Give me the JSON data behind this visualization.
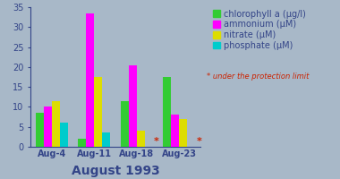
{
  "categories": [
    "Aug-4",
    "Aug-11",
    "Aug-18",
    "Aug-23"
  ],
  "series": {
    "chlorophyll a (μg/l)": [
      8.5,
      2.0,
      11.5,
      17.5
    ],
    "ammonium (μM)": [
      10.0,
      33.5,
      20.5,
      8.0
    ],
    "nitrate (μM)": [
      11.5,
      17.5,
      4.0,
      7.0
    ],
    "phosphate (μM)": [
      6.0,
      3.5,
      0,
      0
    ]
  },
  "colors": [
    "#33cc33",
    "#ff00ff",
    "#dddd00",
    "#00cccc"
  ],
  "ylim": [
    0,
    35
  ],
  "yticks": [
    0,
    5,
    10,
    15,
    20,
    25,
    30,
    35
  ],
  "xlabel": "August 1993",
  "legend_labels": [
    "chlorophyll a (μg/l)",
    "ammonium (μM)",
    "nitrate (μM)",
    "phosphate (μM)"
  ],
  "protection_text": "* under the protection limit",
  "background_color": "#a8b8c8",
  "bar_width": 0.19,
  "xlabel_fontsize": 10,
  "legend_fontsize": 7,
  "tick_fontsize": 7,
  "tick_color": "#334488",
  "xlabel_color": "#334488"
}
